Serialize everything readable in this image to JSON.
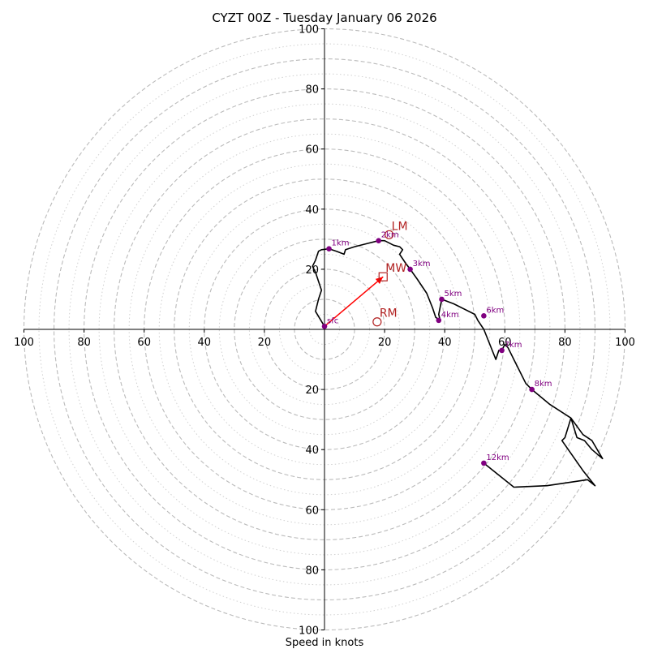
{
  "chart_data": {
    "type": "hodograph",
    "title": "CYZT 00Z - Tuesday January 06 2026",
    "xlabel": "Speed in knots",
    "axis_range": [
      -100,
      100
    ],
    "axis_ticks": [
      {
        "value": -100,
        "label": "100"
      },
      {
        "value": -80,
        "label": "80"
      },
      {
        "value": -60,
        "label": "60"
      },
      {
        "value": -40,
        "label": "40"
      },
      {
        "value": -20,
        "label": "20"
      },
      {
        "value": 20,
        "label": "20"
      },
      {
        "value": 40,
        "label": "40"
      },
      {
        "value": 60,
        "label": "60"
      },
      {
        "value": 80,
        "label": "80"
      },
      {
        "value": 100,
        "label": "100"
      }
    ],
    "rings_dashed": [
      10,
      20,
      30,
      40,
      50,
      60,
      70,
      80,
      90,
      100
    ],
    "rings_dotted": [
      5,
      15,
      25,
      35,
      45,
      55,
      65,
      75,
      85,
      95
    ],
    "trace": [
      [
        0,
        1
      ],
      [
        -3,
        6
      ],
      [
        -2,
        10
      ],
      [
        -1,
        13
      ],
      [
        -2,
        16
      ],
      [
        -3,
        19
      ],
      [
        -4,
        21
      ],
      [
        -3,
        23
      ],
      [
        -2,
        26
      ],
      [
        -1,
        26.5
      ],
      [
        1.5,
        26.8
      ],
      [
        4,
        26
      ],
      [
        6.5,
        25
      ],
      [
        7,
        26.5
      ],
      [
        10,
        27.5
      ],
      [
        14,
        28.5
      ],
      [
        18,
        29.5
      ],
      [
        20,
        29.5
      ],
      [
        23,
        28
      ],
      [
        25,
        27.5
      ],
      [
        26,
        26.5
      ],
      [
        25,
        25
      ],
      [
        27,
        22
      ],
      [
        28.5,
        20
      ],
      [
        31,
        16.5
      ],
      [
        34,
        12
      ],
      [
        36,
        7
      ],
      [
        37,
        4
      ],
      [
        38.5,
        3
      ],
      [
        38,
        5
      ],
      [
        39,
        10
      ],
      [
        43,
        8.5
      ],
      [
        50,
        5
      ],
      [
        51,
        3
      ],
      [
        53,
        0
      ],
      [
        55,
        -5
      ],
      [
        57,
        -10
      ],
      [
        58,
        -7
      ],
      [
        59,
        -7
      ],
      [
        60,
        -5
      ],
      [
        61,
        -6
      ],
      [
        63,
        -10
      ],
      [
        67,
        -18
      ],
      [
        69,
        -20
      ],
      [
        75,
        -25
      ],
      [
        82,
        -29.5
      ],
      [
        86,
        -35
      ],
      [
        89,
        -37
      ],
      [
        92.5,
        -43
      ],
      [
        89,
        -40
      ],
      [
        86.5,
        -37
      ],
      [
        84,
        -36
      ],
      [
        82,
        -29.5
      ],
      [
        80,
        -36
      ],
      [
        79,
        -37
      ],
      [
        86,
        -47
      ],
      [
        90,
        -52
      ],
      [
        87.5,
        -50
      ],
      [
        74,
        -52
      ],
      [
        63,
        -52.5
      ],
      [
        53,
        -44.5
      ]
    ],
    "height_markers": [
      {
        "label": "sfc",
        "u": 0,
        "v": 1
      },
      {
        "label": "1km",
        "u": 1.5,
        "v": 26.8
      },
      {
        "label": "2km",
        "u": 18,
        "v": 29.5
      },
      {
        "label": "3km",
        "u": 28.5,
        "v": 20
      },
      {
        "label": "4km",
        "u": 38,
        "v": 3
      },
      {
        "label": "5km",
        "u": 39,
        "v": 10
      },
      {
        "label": "6km",
        "u": 53,
        "v": 4.5
      },
      {
        "label": "7km",
        "u": 59,
        "v": -7
      },
      {
        "label": "8km",
        "u": 69,
        "v": -20
      },
      {
        "label": "12km",
        "u": 53,
        "v": -44.5
      }
    ],
    "motion_markers": [
      {
        "label": "LM",
        "u": 21.5,
        "v": 31.5,
        "marker": "circle"
      },
      {
        "label": "MW",
        "u": 19.5,
        "v": 17.5,
        "marker": "square"
      },
      {
        "label": "RM",
        "u": 17.5,
        "v": 2.5,
        "marker": "circle"
      }
    ],
    "mean_wind_vector": {
      "from": [
        0,
        1
      ],
      "to": [
        19.5,
        17.5
      ]
    },
    "colors": {
      "trace": "#000000",
      "height_dot": "#800080",
      "motion": "#b22222",
      "vector": "#ff0000",
      "ring": "#bbbbbb",
      "axis": "#000000"
    }
  }
}
